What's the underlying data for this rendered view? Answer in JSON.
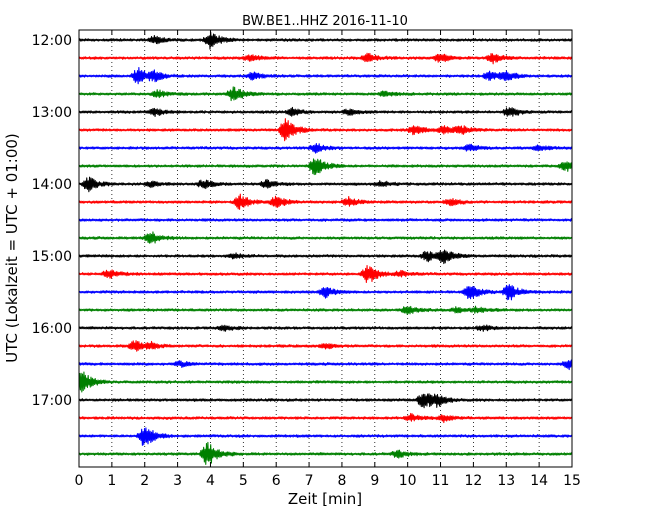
{
  "chart_data": {
    "type": "line",
    "title": "BW.BE1..HHZ 2016-11-10",
    "xlabel": "Zeit  [min]",
    "ylabel": "UTC (Lokalzeit = UTC + 01:00)",
    "xlim": [
      0,
      15
    ],
    "x_ticks": [
      0,
      1,
      2,
      3,
      4,
      5,
      6,
      7,
      8,
      9,
      10,
      11,
      12,
      13,
      14,
      15
    ],
    "x_tick_labels": [
      "0",
      "1",
      "2",
      "3",
      "4",
      "5",
      "6",
      "7",
      "8",
      "9",
      "10",
      "11",
      "12",
      "13",
      "14",
      "15"
    ],
    "y_tick_labels": [
      "12:00",
      "13:00",
      "14:00",
      "15:00",
      "16:00",
      "17:00"
    ],
    "grid": "vertical dotted",
    "trace_interval_minutes": 15,
    "color_cycle": [
      "#000000",
      "#ff0000",
      "#0000ff",
      "#008000"
    ],
    "traces": [
      {
        "start": "12:00",
        "events": [
          [
            4.0,
            1.0
          ],
          [
            2.3,
            0.4
          ]
        ]
      },
      {
        "start": "12:15",
        "events": [
          [
            5.2,
            0.4
          ],
          [
            8.8,
            0.5
          ],
          [
            11.0,
            0.5
          ],
          [
            12.6,
            0.5
          ]
        ]
      },
      {
        "start": "12:30",
        "events": [
          [
            1.8,
            0.9
          ],
          [
            2.3,
            0.5
          ],
          [
            5.3,
            0.4
          ],
          [
            12.5,
            0.5
          ],
          [
            13.0,
            0.5
          ]
        ]
      },
      {
        "start": "12:45",
        "events": [
          [
            4.7,
            0.9
          ],
          [
            2.4,
            0.4
          ],
          [
            9.3,
            0.3
          ]
        ]
      },
      {
        "start": "13:00",
        "events": [
          [
            2.3,
            0.4
          ],
          [
            6.5,
            0.4
          ],
          [
            8.2,
            0.3
          ],
          [
            13.1,
            0.6
          ]
        ]
      },
      {
        "start": "13:15",
        "events": [
          [
            6.3,
            1.3
          ],
          [
            10.2,
            0.5
          ],
          [
            11.1,
            0.4
          ],
          [
            11.6,
            0.5
          ]
        ]
      },
      {
        "start": "13:30",
        "events": [
          [
            7.2,
            0.5
          ],
          [
            11.9,
            0.4
          ],
          [
            14.0,
            0.3
          ]
        ]
      },
      {
        "start": "13:45",
        "events": [
          [
            7.2,
            1.1
          ],
          [
            14.8,
            0.6
          ]
        ]
      },
      {
        "start": "14:00",
        "events": [
          [
            0.3,
            0.8
          ],
          [
            2.2,
            0.3
          ],
          [
            3.8,
            0.5
          ],
          [
            5.7,
            0.4
          ],
          [
            9.2,
            0.3
          ]
        ]
      },
      {
        "start": "14:15",
        "events": [
          [
            4.9,
            0.8
          ],
          [
            6.0,
            0.8
          ],
          [
            8.2,
            0.5
          ],
          [
            11.3,
            0.4
          ]
        ]
      },
      {
        "start": "14:30",
        "events": []
      },
      {
        "start": "14:45",
        "events": [
          [
            2.2,
            0.7
          ]
        ]
      },
      {
        "start": "15:00",
        "events": [
          [
            11.1,
            0.8
          ],
          [
            10.6,
            0.6
          ],
          [
            4.7,
            0.3
          ]
        ]
      },
      {
        "start": "15:15",
        "events": [
          [
            0.9,
            0.5
          ],
          [
            8.8,
            1.1
          ],
          [
            9.8,
            0.3
          ]
        ]
      },
      {
        "start": "15:30",
        "events": [
          [
            7.5,
            0.6
          ],
          [
            11.9,
            0.9
          ],
          [
            13.1,
            1.0
          ]
        ]
      },
      {
        "start": "15:45",
        "events": [
          [
            10.0,
            0.5
          ],
          [
            11.5,
            0.3
          ],
          [
            12.1,
            0.3
          ]
        ]
      },
      {
        "start": "16:00",
        "events": [
          [
            4.4,
            0.3
          ],
          [
            12.3,
            0.3
          ]
        ]
      },
      {
        "start": "16:15",
        "events": [
          [
            1.7,
            0.6
          ],
          [
            2.2,
            0.3
          ],
          [
            7.5,
            0.3
          ]
        ]
      },
      {
        "start": "16:30",
        "events": [
          [
            3.1,
            0.3
          ],
          [
            14.9,
            0.5
          ]
        ]
      },
      {
        "start": "16:45",
        "events": [
          [
            0.1,
            1.4
          ]
        ]
      },
      {
        "start": "17:00",
        "events": [
          [
            10.5,
            1.1
          ],
          [
            10.9,
            0.5
          ]
        ]
      },
      {
        "start": "17:15",
        "events": [
          [
            10.1,
            0.4
          ],
          [
            11.1,
            0.4
          ]
        ]
      },
      {
        "start": "17:30",
        "events": [
          [
            2.0,
            1.3
          ]
        ]
      },
      {
        "start": "17:45",
        "events": [
          [
            3.9,
            1.5
          ],
          [
            9.7,
            0.4
          ]
        ]
      }
    ]
  }
}
